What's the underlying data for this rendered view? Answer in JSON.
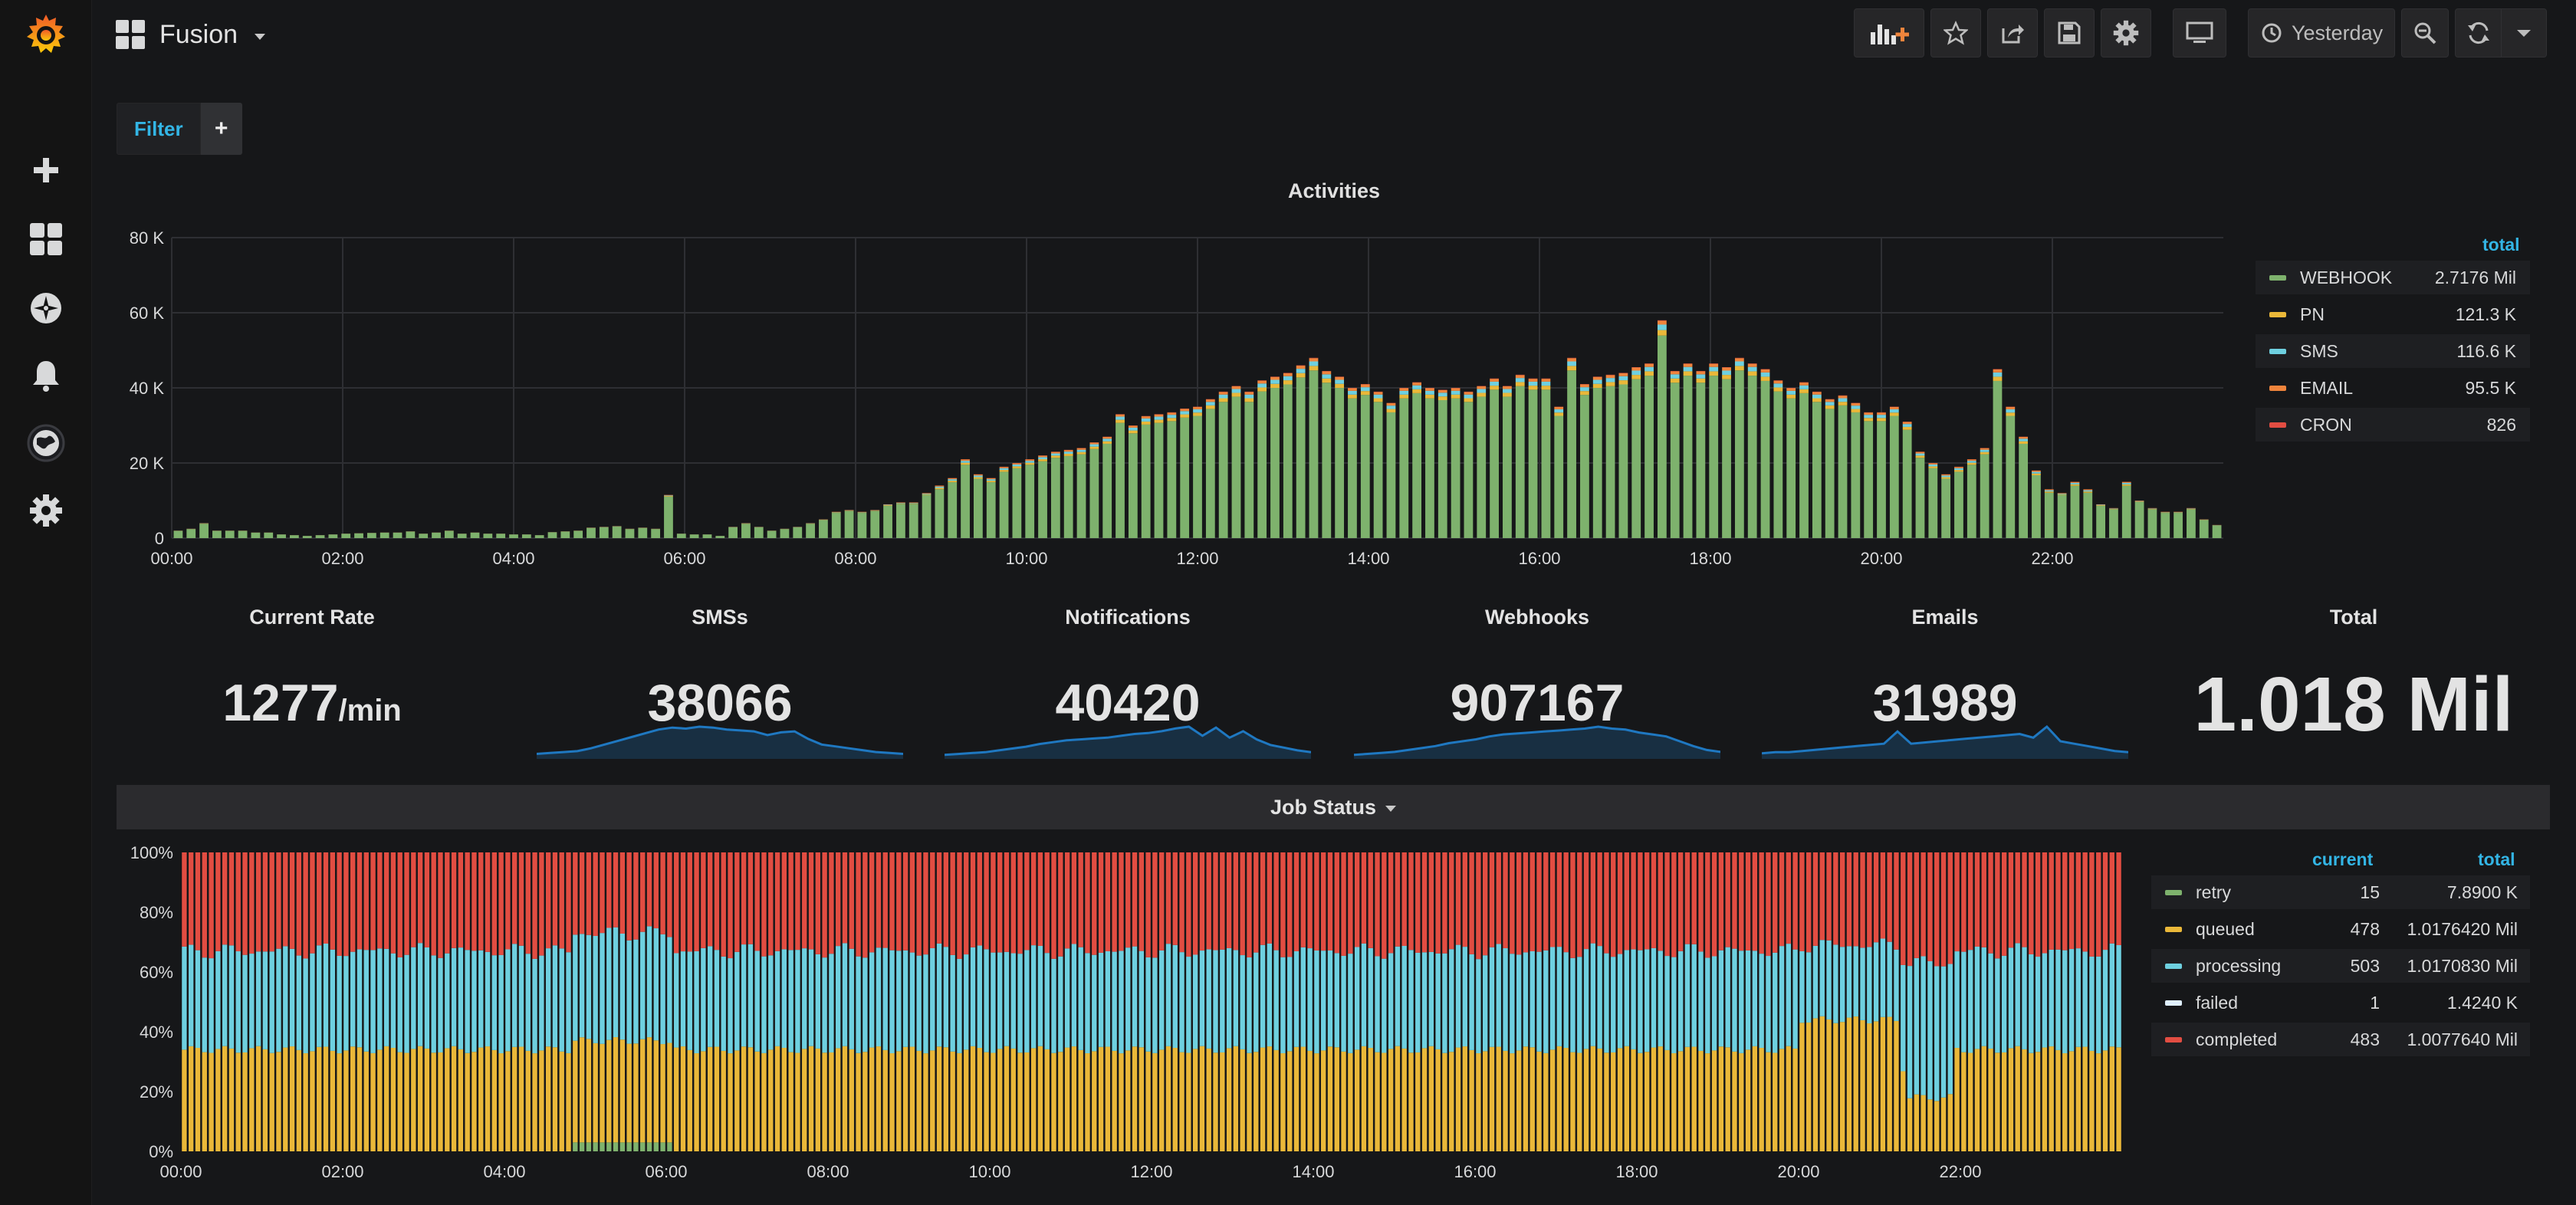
{
  "dashboard": {
    "title": "Fusion"
  },
  "toolbar": {
    "time_range_label": "Yesterday"
  },
  "filter": {
    "label": "Filter",
    "add_symbol": "+"
  },
  "colors": {
    "webhook": "#7eb26d",
    "pn": "#eab839",
    "sms": "#6ed0e0",
    "email": "#ef843c",
    "cron": "#e24d42",
    "accent": "#33b5e5",
    "sparkline": "#1f78c1",
    "retry": "#7eb26d",
    "queued": "#eab839",
    "processing": "#6ed0e0",
    "failed": "#e0f0ff",
    "completed": "#e24d42"
  },
  "icons": {
    "logo": "grafana-logo-icon",
    "create": "plus-icon",
    "dashboards": "dashboards-grid-icon",
    "explore": "compass-icon",
    "alerting": "bell-icon",
    "globe": "globe-icon",
    "config": "gear-icon"
  },
  "activities": {
    "title": "Activities",
    "legend_header": "total",
    "legend": [
      {
        "name": "WEBHOOK",
        "total": "2.7176 Mil"
      },
      {
        "name": "PN",
        "total": "121.3 K"
      },
      {
        "name": "SMS",
        "total": "116.6 K"
      },
      {
        "name": "EMAIL",
        "total": "95.5 K"
      },
      {
        "name": "CRON",
        "total": "826"
      }
    ]
  },
  "stats": [
    {
      "title": "Current Rate",
      "value": "1277",
      "unit": "/min"
    },
    {
      "title": "SMSs",
      "value": "38066"
    },
    {
      "title": "Notifications",
      "value": "40420"
    },
    {
      "title": "Webhooks",
      "value": "907167"
    },
    {
      "title": "Emails",
      "value": "31989"
    },
    {
      "title": "Total",
      "value": "1.018 Mil"
    }
  ],
  "job_status": {
    "title": "Job Status",
    "legend_headers": {
      "current": "current",
      "total": "total"
    },
    "legend": [
      {
        "name": "retry",
        "current": "15",
        "total": "7.8900 K"
      },
      {
        "name": "queued",
        "current": "478",
        "total": "1.0176420 Mil"
      },
      {
        "name": "processing",
        "current": "503",
        "total": "1.0170830 Mil"
      },
      {
        "name": "failed",
        "current": "1",
        "total": "1.4240 K"
      },
      {
        "name": "completed",
        "current": "483",
        "total": "1.0077640 Mil"
      }
    ]
  },
  "chart_data": [
    {
      "type": "bar",
      "title": "Activities",
      "stacked": true,
      "x_ticks": [
        "00:00",
        "02:00",
        "04:00",
        "06:00",
        "08:00",
        "10:00",
        "12:00",
        "14:00",
        "16:00",
        "18:00",
        "20:00",
        "22:00"
      ],
      "y_ticks": [
        "0",
        "20 K",
        "40 K",
        "60 K",
        "80 K"
      ],
      "ylim": [
        0,
        80000
      ],
      "grid": true,
      "legend_position": "right",
      "series_names": [
        "WEBHOOK",
        "PN",
        "SMS",
        "EMAIL",
        "CRON"
      ],
      "totals": [
        2000,
        2500,
        4000,
        2000,
        2000,
        2000,
        1500,
        1500,
        1000,
        800,
        600,
        800,
        1000,
        1200,
        1300,
        1400,
        1500,
        1500,
        1800,
        1200,
        1500,
        2000,
        1200,
        1500,
        1200,
        1200,
        1000,
        1000,
        800,
        1600,
        1800,
        2000,
        2800,
        3000,
        3200,
        2500,
        2800,
        2500,
        11500,
        1200,
        1000,
        1000,
        600,
        3000,
        4000,
        3000,
        2000,
        2500,
        3000,
        4000,
        5000,
        7000,
        7500,
        7000,
        7500,
        9000,
        9500,
        9500,
        12000,
        14000,
        16000,
        21000,
        17000,
        16000,
        19000,
        20000,
        21000,
        22000,
        23000,
        23500,
        24000,
        25500,
        27000,
        33000,
        30000,
        32500,
        33000,
        33500,
        34500,
        35000,
        37000,
        39000,
        40500,
        39000,
        42000,
        43000,
        44000,
        46000,
        48000,
        44500,
        43000,
        40000,
        41000,
        39000,
        36000,
        40000,
        41500,
        40000,
        39500,
        40000,
        39000,
        40500,
        42500,
        40500,
        43500,
        42500,
        42500,
        35000,
        48000,
        41000,
        43000,
        43500,
        44000,
        45500,
        46500,
        58000,
        44500,
        46500,
        44500,
        46500,
        45500,
        48000,
        46500,
        45000,
        42000,
        40000,
        41500,
        39000,
        37000,
        38000,
        36000,
        33500,
        33500,
        35000,
        31000,
        23000,
        20000,
        17000,
        19000,
        21000,
        24000,
        45000,
        35000,
        27000,
        18000,
        13000,
        12000,
        15000,
        13000,
        9000,
        8000,
        15000,
        10000,
        8000,
        7000,
        7000,
        8000,
        5000,
        3500
      ],
      "colors": [
        "#7eb26d",
        "#eab839",
        "#6ed0e0",
        "#ef843c",
        "#e24d42"
      ]
    },
    {
      "type": "bar",
      "title": "Job Status",
      "stacked": true,
      "percent": true,
      "x_ticks": [
        "00:00",
        "02:00",
        "04:00",
        "06:00",
        "08:00",
        "10:00",
        "12:00",
        "14:00",
        "16:00",
        "18:00",
        "20:00",
        "22:00"
      ],
      "y_ticks": [
        "0%",
        "20%",
        "40%",
        "60%",
        "80%",
        "100%"
      ],
      "ylim": [
        0,
        100
      ],
      "legend_position": "right",
      "series_names": [
        "retry",
        "queued",
        "processing",
        "failed",
        "completed"
      ],
      "queued_pct_typical": 34,
      "processing_pct_typical": 33,
      "completed_pct_typical": 33
    },
    {
      "type": "line",
      "title": "SMSs sparkline",
      "values": [
        2,
        3,
        4,
        5,
        8,
        12,
        16,
        20,
        24,
        28,
        30,
        29,
        31,
        30,
        28,
        27,
        26,
        22,
        25,
        26,
        18,
        12,
        10,
        8,
        6,
        4,
        3,
        2
      ]
    },
    {
      "type": "line",
      "title": "Notifications sparkline",
      "values": [
        1,
        2,
        3,
        4,
        6,
        8,
        10,
        13,
        15,
        17,
        18,
        19,
        20,
        22,
        24,
        25,
        27,
        30,
        32,
        22,
        31,
        20,
        27,
        18,
        12,
        9,
        6,
        4
      ]
    },
    {
      "type": "line",
      "title": "Webhooks sparkline",
      "values": [
        1,
        2,
        3,
        4,
        6,
        8,
        10,
        13,
        15,
        17,
        20,
        22,
        23,
        24,
        25,
        26,
        27,
        28,
        30,
        28,
        27,
        24,
        22,
        20,
        15,
        10,
        6,
        4
      ]
    },
    {
      "type": "line",
      "title": "Emails sparkline",
      "values": [
        2,
        3,
        3,
        4,
        5,
        6,
        7,
        8,
        9,
        10,
        20,
        10,
        11,
        12,
        13,
        14,
        15,
        16,
        17,
        18,
        15,
        24,
        12,
        10,
        8,
        6,
        4,
        3
      ]
    }
  ]
}
